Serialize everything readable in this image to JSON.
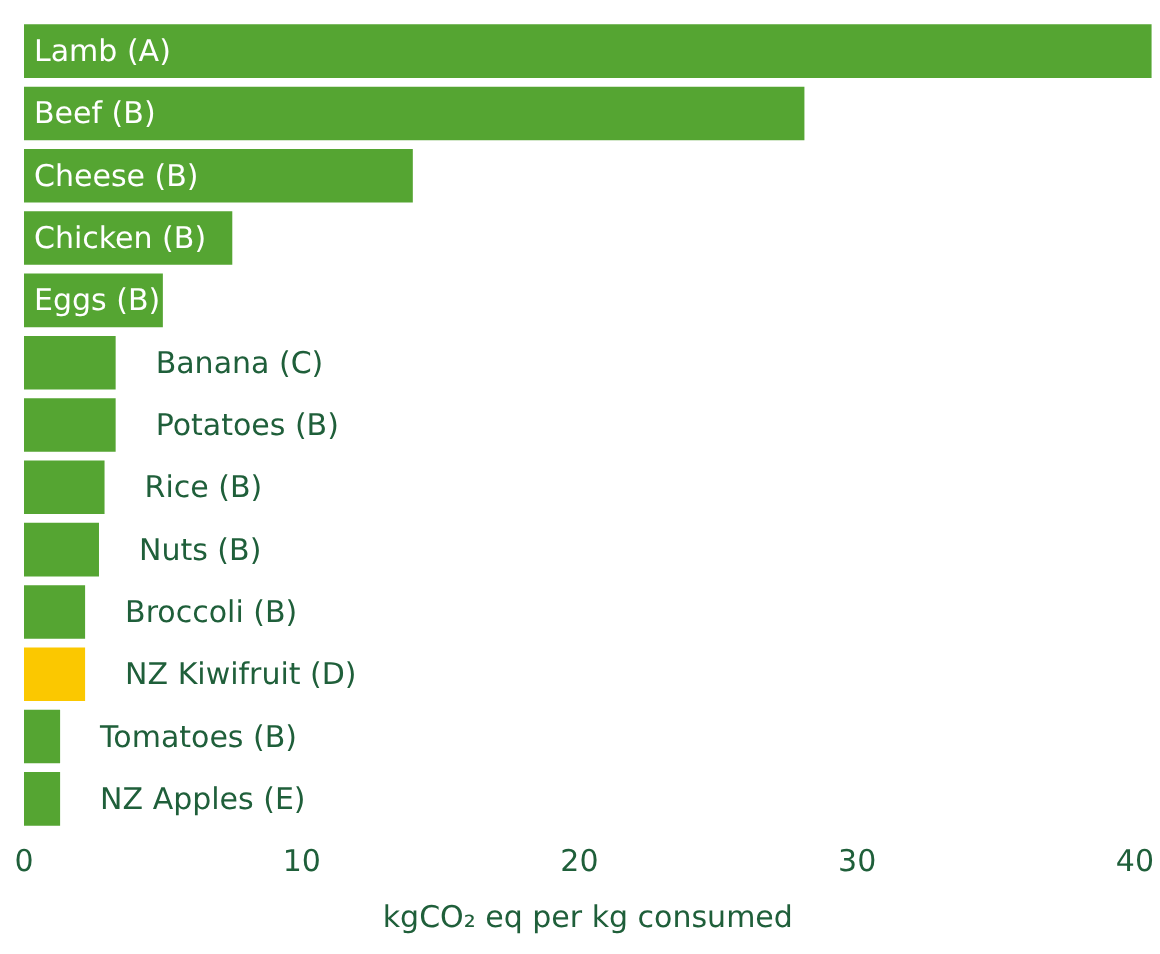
{
  "chart_data": {
    "type": "bar",
    "orientation": "horizontal",
    "categories": [
      "Lamb (A)",
      "Beef (B)",
      "Cheese (B)",
      "Chicken (B)",
      "Eggs (B)",
      "Banana (C)",
      "Potatoes (B)",
      "Rice (B)",
      "Nuts (B)",
      "Broccoli (B)",
      "NZ Kiwifruit (D)",
      "Tomatoes (B)",
      "NZ Apples (E)"
    ],
    "values": [
      40.6,
      28.1,
      14.0,
      7.5,
      5.0,
      3.3,
      3.3,
      2.9,
      2.7,
      2.2,
      2.2,
      1.3,
      1.3
    ],
    "colors": [
      "#55a532",
      "#55a532",
      "#55a532",
      "#55a532",
      "#55a532",
      "#55a532",
      "#55a532",
      "#55a532",
      "#55a532",
      "#55a532",
      "#fbc800",
      "#55a532",
      "#55a532"
    ],
    "xlim": [
      0,
      40.6
    ],
    "xticks": [
      0,
      10,
      20,
      30,
      40
    ],
    "xlabel": "kgCO₂ eq per kg consumed"
  }
}
